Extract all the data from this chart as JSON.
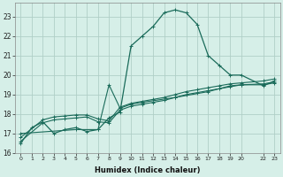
{
  "xlabel": "Humidex (Indice chaleur)",
  "bg_color": "#d6efe8",
  "grid_color": "#b0cfc7",
  "line_color": "#1a6b5a",
  "xlim": [
    -0.5,
    23.5
  ],
  "ylim": [
    16,
    23.7
  ],
  "yticks": [
    16,
    17,
    18,
    19,
    20,
    21,
    22,
    23
  ],
  "xticks": [
    0,
    1,
    2,
    3,
    4,
    5,
    6,
    7,
    8,
    9,
    10,
    11,
    12,
    13,
    14,
    15,
    16,
    17,
    18,
    19,
    20,
    22,
    23
  ],
  "xtick_labels": [
    "0",
    "1",
    "2",
    "3",
    "4",
    "5",
    "6",
    "7",
    "8",
    "9",
    "10",
    "11",
    "12",
    "13",
    "14",
    "15",
    "16",
    "17",
    "18",
    "19",
    "20",
    "22",
    "23"
  ],
  "series1_x": [
    0,
    1,
    2,
    3,
    4,
    5,
    6,
    7,
    8,
    9,
    10,
    11,
    12,
    13,
    14,
    15,
    16,
    17,
    18,
    19,
    20,
    22,
    23
  ],
  "series1_y": [
    16.5,
    17.3,
    17.6,
    17.0,
    17.2,
    17.3,
    17.1,
    17.2,
    17.8,
    18.1,
    21.5,
    22.0,
    22.5,
    23.2,
    23.35,
    23.2,
    22.6,
    21.0,
    20.5,
    20.0,
    20.0,
    19.45,
    19.7
  ],
  "series2_x": [
    0,
    2,
    3,
    4,
    5,
    6,
    7,
    8,
    9,
    10,
    11,
    12,
    13,
    14,
    15,
    16,
    17,
    18,
    19,
    20,
    22,
    23
  ],
  "series2_y": [
    16.6,
    17.55,
    17.7,
    17.75,
    17.8,
    17.85,
    17.6,
    17.55,
    18.2,
    18.4,
    18.5,
    18.6,
    18.7,
    18.85,
    19.0,
    19.1,
    19.2,
    19.3,
    19.4,
    19.5,
    19.55,
    19.65
  ],
  "series3_x": [
    0,
    2,
    3,
    4,
    5,
    6,
    7,
    8,
    9,
    10,
    11,
    12,
    13,
    14,
    15,
    16,
    17,
    18,
    19,
    20,
    22,
    23
  ],
  "series3_y": [
    16.8,
    17.7,
    17.85,
    17.9,
    17.95,
    17.95,
    17.75,
    17.65,
    18.35,
    18.55,
    18.65,
    18.75,
    18.85,
    19.0,
    19.15,
    19.25,
    19.35,
    19.45,
    19.55,
    19.6,
    19.7,
    19.8
  ],
  "series4_x": [
    0,
    5,
    7,
    8,
    9,
    10,
    11,
    14,
    17,
    19,
    20,
    22,
    23
  ],
  "series4_y": [
    17.0,
    17.2,
    17.2,
    19.5,
    18.3,
    18.5,
    18.6,
    18.85,
    19.15,
    19.45,
    19.5,
    19.5,
    19.6
  ]
}
